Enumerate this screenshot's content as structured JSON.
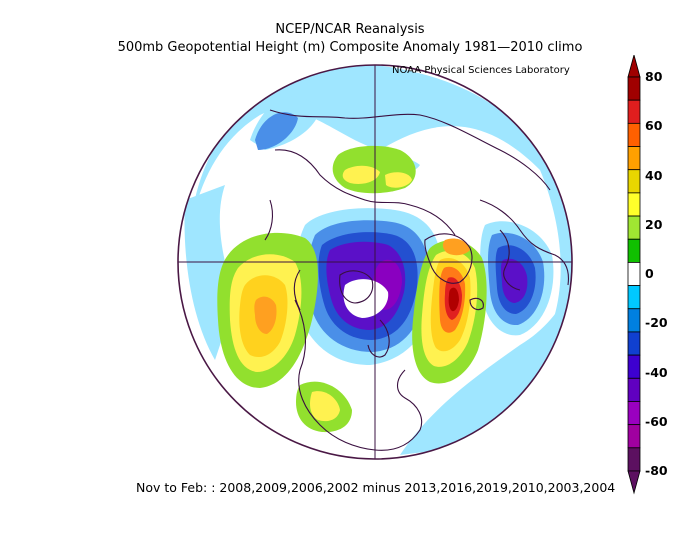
{
  "header": {
    "title": "NCEP/NCAR Reanalysis",
    "subtitle": "500mb Geopotential Height (m) Composite Anomaly 1981—2010 climo",
    "credit": "NOAA Physical Sciences Laboratory"
  },
  "footer": {
    "caption": "Nov to Feb: : 2008,2009,2006,2002 minus 2013,2016,2019,2010,2003,2004"
  },
  "colorbar": {
    "labels": [
      "80",
      "60",
      "40",
      "20",
      "0",
      "-20",
      "-40",
      "-60",
      "-80"
    ],
    "colors": [
      "#a00000",
      "#e01e1e",
      "#ff6000",
      "#ffa000",
      "#e8d600",
      "#ffff2a",
      "#a0e632",
      "#10c000",
      "#ffffff",
      "#00c8ff",
      "#0080e0",
      "#1040d0",
      "#3d00d0",
      "#6000c0",
      "#9a00c0",
      "#a000a0",
      "#5c1060"
    ]
  },
  "map": {
    "projection": "north-polar-stereographic",
    "colors": {
      "boundary": "#4a1845",
      "coast": "#3a1040"
    }
  }
}
